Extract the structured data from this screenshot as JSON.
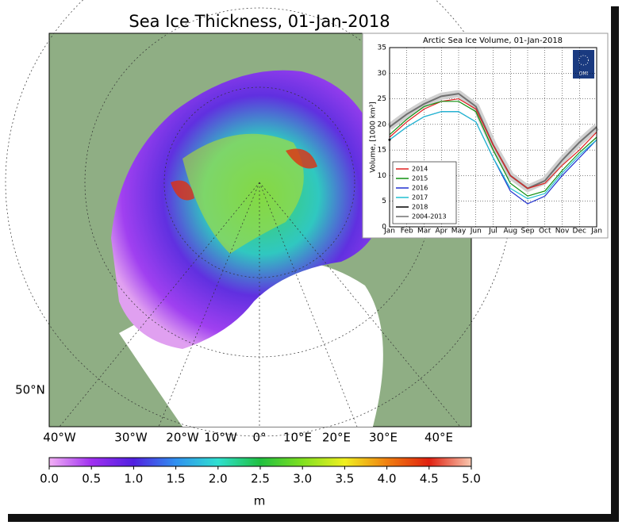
{
  "title": "Sea Ice Thickness, 01-Jan-2018",
  "lat_label": "50°N",
  "lon_labels": [
    "40°W",
    "30°W",
    "20°W",
    "10°W",
    "0°",
    "10°E",
    "20°E",
    "30°E",
    "40°E"
  ],
  "colorbar": {
    "label": "m",
    "lim": [
      0,
      5
    ],
    "ticks": [
      {
        "value": 0,
        "label": "0.0"
      },
      0.5,
      {
        "value": 1,
        "label": "1.0"
      },
      1.5,
      {
        "value": 2,
        "label": "2.0"
      },
      2.5,
      {
        "value": 3,
        "label": "3.0"
      },
      3.5,
      {
        "value": 4,
        "label": "4.0"
      },
      4.5,
      {
        "value": 5,
        "label": "5.0"
      }
    ]
  },
  "chart_data": {
    "type": "line",
    "title": "Arctic Sea Ice Volume, 01-Jan-2018",
    "y_label": "Volume, [1000 km³]",
    "logo": "DMI",
    "categories": [
      "Jan",
      "Feb",
      "Mar",
      "Apr",
      "May",
      "Jun",
      "Jul",
      "Aug",
      "Sep",
      "Oct",
      "Nov",
      "Dec",
      "Jan"
    ],
    "ylim": [
      0,
      35
    ],
    "yticks": [
      0,
      5,
      10,
      15,
      20,
      25,
      30,
      35
    ],
    "grid": true,
    "legend": "lower left",
    "series": [
      {
        "name": "2004-2013",
        "color": "#707070",
        "values": [
          19.5,
          22,
          24,
          25.5,
          26,
          23.5,
          16,
          10,
          7.5,
          9,
          13,
          16.5,
          19.5
        ]
      },
      {
        "name": "2014",
        "color": "#e02020",
        "values": [
          17.5,
          20.5,
          23,
          24.5,
          25,
          23,
          16,
          10,
          7.5,
          8.5,
          12,
          15,
          18.5
        ]
      },
      {
        "name": "2015",
        "color": "#109010",
        "values": [
          18,
          21,
          23.5,
          24.5,
          24.5,
          22.5,
          15,
          8.5,
          6,
          7,
          11,
          14.5,
          17.5
        ]
      },
      {
        "name": "2016",
        "color": "#2030d0",
        "values": [
          17,
          19.5,
          21.5,
          22.5,
          22.5,
          20.5,
          13.5,
          7,
          4.5,
          6,
          10,
          13.5,
          17
        ]
      },
      {
        "name": "2017",
        "color": "#20c0d0",
        "values": [
          17,
          19.5,
          21.5,
          22.5,
          22.5,
          20.5,
          13.5,
          7.5,
          5.5,
          6.5,
          10.5,
          14,
          17
        ]
      },
      {
        "name": "2018",
        "color": "#000000",
        "values": [
          17,
          null,
          null,
          null,
          null,
          null,
          null,
          null,
          null,
          null,
          null,
          null,
          null
        ]
      }
    ]
  }
}
